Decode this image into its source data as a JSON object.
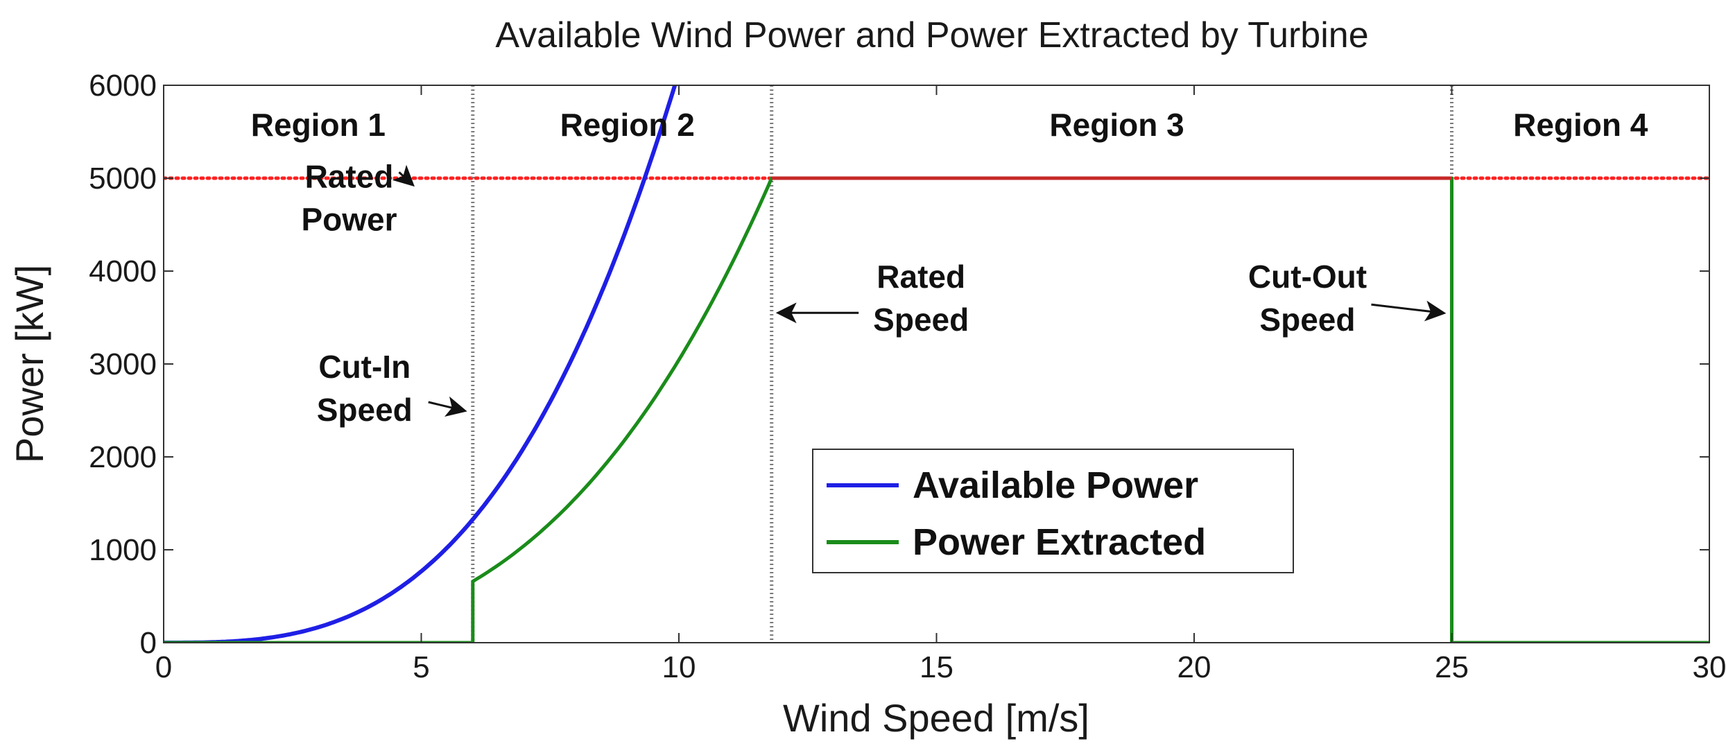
{
  "chart_data": {
    "type": "line",
    "title": "Available Wind Power and Power Extracted by Turbine",
    "xlabel": "Wind Speed [m/s]",
    "ylabel": "Power [kW]",
    "xlim": [
      0,
      30
    ],
    "ylim": [
      0,
      6000
    ],
    "xticks": [
      0,
      5,
      10,
      15,
      20,
      25,
      30
    ],
    "yticks": [
      0,
      1000,
      2000,
      3000,
      4000,
      5000,
      6000
    ],
    "grid": false,
    "legend": {
      "position": "lower-center-right"
    },
    "colors": {
      "available": "#1f1fe6",
      "extracted": "#1a8c1a",
      "rated": "#ff2020",
      "boundary": "#7a7a7a",
      "region3": "#c62828"
    },
    "series": [
      {
        "name": "Available Power",
        "x": [
          0,
          1,
          2,
          3,
          4,
          5,
          6,
          7,
          8,
          9,
          10
        ],
        "y": [
          0,
          6,
          49,
          166,
          393,
          768,
          1327,
          2107,
          3146,
          4479,
          6144
        ]
      },
      {
        "name": "Power Extracted",
        "x": [
          0,
          6,
          6,
          7,
          8,
          9,
          10,
          11,
          11.8,
          12,
          25,
          25,
          30
        ],
        "y": [
          0,
          0,
          660,
          1050,
          1570,
          2240,
          3070,
          4085,
          5000,
          5000,
          5000,
          0,
          0
        ]
      }
    ],
    "reference_lines": [
      {
        "type": "horizontal",
        "y": 5000,
        "style": "dotted"
      },
      {
        "type": "vertical",
        "x": 6,
        "style": "dotted"
      },
      {
        "type": "vertical",
        "x": 11.8,
        "style": "dotted"
      },
      {
        "type": "vertical",
        "x": 25,
        "style": "dotted"
      }
    ],
    "regions": [
      {
        "label": "Region 1",
        "x": 3
      },
      {
        "label": "Region 2",
        "x": 9
      },
      {
        "label": "Region 3",
        "x": 18.5
      },
      {
        "label": "Region 4",
        "x": 27.5
      }
    ],
    "annotations": [
      {
        "lines": [
          "Rated",
          "Power"
        ],
        "text_x": 3.6,
        "text_y": 4900,
        "arrow_to": [
          5.0,
          5000
        ],
        "direction": "up-right"
      },
      {
        "lines": [
          "Cut-In",
          "Speed"
        ],
        "text_x": 3.9,
        "text_y": 2850,
        "arrow_to": [
          6.0,
          2500
        ],
        "direction": "right"
      },
      {
        "lines": [
          "Rated",
          "Speed"
        ],
        "text_x": 14.7,
        "text_y": 3820,
        "arrow_to": [
          11.8,
          3550
        ],
        "direction": "left"
      },
      {
        "lines": [
          "Cut-Out",
          "Speed"
        ],
        "text_x": 22.2,
        "text_y": 3820,
        "arrow_to": [
          25.0,
          3550
        ],
        "direction": "right"
      }
    ]
  }
}
